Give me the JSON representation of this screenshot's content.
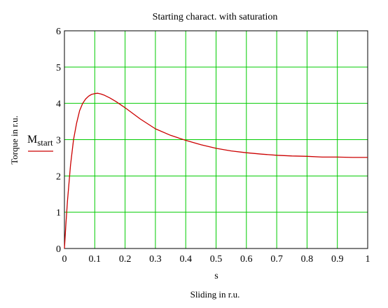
{
  "chart_data": {
    "type": "line",
    "title": "Starting charact. with saturation",
    "xlabel": "s",
    "xlabel_caption": "Sliding in  r.u.",
    "ylabel": "Torque in   r.u.",
    "xlim": [
      0,
      1
    ],
    "ylim": [
      0,
      6
    ],
    "x_ticks": [
      "0",
      "0.1",
      "0.2",
      "0.3",
      "0.4",
      "0.5",
      "0.6",
      "0.7",
      "0.8",
      "0.9",
      "1"
    ],
    "y_ticks": [
      "0",
      "1",
      "2",
      "3",
      "4",
      "5",
      "6"
    ],
    "grid": true,
    "grid_color": "#00cc00",
    "legend": {
      "position": "left",
      "entries": [
        {
          "base": "M",
          "sub": "start",
          "color": "#cc0000"
        }
      ]
    },
    "series": [
      {
        "name": "Mstart",
        "color": "#cc0000",
        "x": [
          0,
          0.005,
          0.01,
          0.02,
          0.03,
          0.04,
          0.05,
          0.06,
          0.07,
          0.08,
          0.09,
          0.1,
          0.11,
          0.12,
          0.13,
          0.15,
          0.17,
          0.2,
          0.25,
          0.3,
          0.35,
          0.4,
          0.45,
          0.5,
          0.55,
          0.6,
          0.65,
          0.7,
          0.75,
          0.8,
          0.85,
          0.9,
          0.95,
          1.0
        ],
        "y": [
          0,
          0.7,
          1.3,
          2.3,
          3.0,
          3.45,
          3.8,
          4.0,
          4.12,
          4.2,
          4.25,
          4.27,
          4.28,
          4.26,
          4.23,
          4.15,
          4.05,
          3.88,
          3.57,
          3.3,
          3.12,
          2.98,
          2.86,
          2.76,
          2.69,
          2.64,
          2.6,
          2.57,
          2.55,
          2.54,
          2.52,
          2.52,
          2.51,
          2.51
        ]
      }
    ]
  }
}
